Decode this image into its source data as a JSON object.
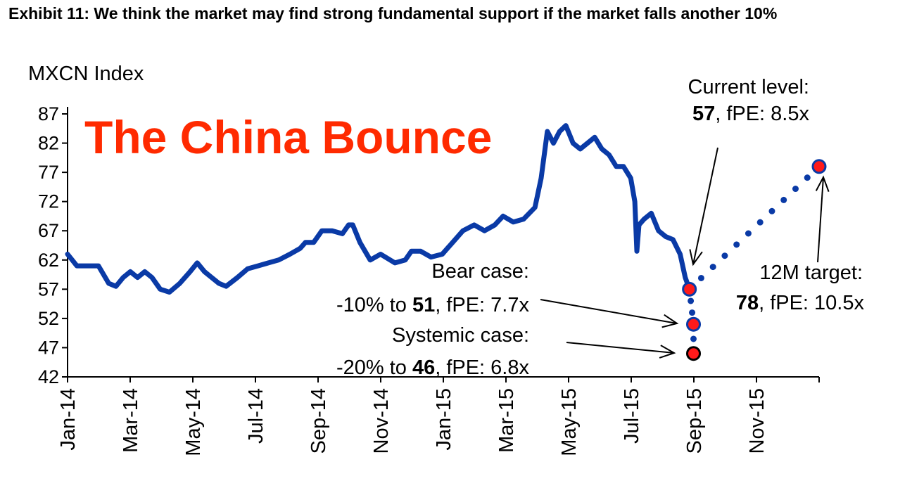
{
  "exhibit_title": "Exhibit 11: We think the market may find strong fundamental support if the market falls another 10%",
  "overlay_title": "The China Bounce",
  "colors": {
    "series": "#0a3aa6",
    "marker": "#ff1a1a",
    "overlay": "#ff2a00"
  },
  "chart_data": {
    "type": "line",
    "ylabel": "MXCN Index",
    "ylim": [
      42,
      87
    ],
    "yticks": [
      87,
      82,
      77,
      72,
      67,
      62,
      57,
      52,
      47,
      42
    ],
    "xticks": [
      "Jan-14",
      "Mar-14",
      "May-14",
      "Jul-14",
      "Sep-14",
      "Nov-14",
      "Jan-15",
      "Mar-15",
      "May-15",
      "Jul-15",
      "Sep-15",
      "Nov-15"
    ],
    "x_range": [
      "2014-01-01",
      "2016-01-01"
    ],
    "series": [
      {
        "values": [
          [
            "2014-01-01",
            63
          ],
          [
            "2014-01-10",
            61
          ],
          [
            "2014-01-20",
            61
          ],
          [
            "2014-01-31",
            61
          ],
          [
            "2014-02-10",
            58
          ],
          [
            "2014-02-17",
            57.5
          ],
          [
            "2014-02-24",
            59
          ],
          [
            "2014-03-03",
            60
          ],
          [
            "2014-03-10",
            59
          ],
          [
            "2014-03-17",
            60
          ],
          [
            "2014-03-24",
            59
          ],
          [
            "2014-04-01",
            57
          ],
          [
            "2014-04-10",
            56.5
          ],
          [
            "2014-04-20",
            58
          ],
          [
            "2014-04-30",
            60
          ],
          [
            "2014-05-07",
            61.5
          ],
          [
            "2014-05-14",
            60
          ],
          [
            "2014-05-21",
            59
          ],
          [
            "2014-05-28",
            58
          ],
          [
            "2014-06-04",
            57.5
          ],
          [
            "2014-06-15",
            59
          ],
          [
            "2014-06-25",
            60.5
          ],
          [
            "2014-07-05",
            61
          ],
          [
            "2014-07-15",
            61.5
          ],
          [
            "2014-07-25",
            62
          ],
          [
            "2014-08-05",
            63
          ],
          [
            "2014-08-15",
            64
          ],
          [
            "2014-08-20",
            65
          ],
          [
            "2014-08-28",
            65
          ],
          [
            "2014-09-05",
            67
          ],
          [
            "2014-09-15",
            67
          ],
          [
            "2014-09-25",
            66.5
          ],
          [
            "2014-10-01",
            68
          ],
          [
            "2014-10-05",
            68
          ],
          [
            "2014-10-12",
            65
          ],
          [
            "2014-10-22",
            62
          ],
          [
            "2014-11-01",
            63
          ],
          [
            "2014-11-15",
            61.5
          ],
          [
            "2014-11-25",
            62
          ],
          [
            "2014-12-01",
            63.5
          ],
          [
            "2014-12-10",
            63.5
          ],
          [
            "2014-12-20",
            62.5
          ],
          [
            "2014-12-31",
            63
          ],
          [
            "2015-01-10",
            65
          ],
          [
            "2015-01-20",
            67
          ],
          [
            "2015-01-31",
            68
          ],
          [
            "2015-02-10",
            67
          ],
          [
            "2015-02-20",
            68
          ],
          [
            "2015-02-28",
            69.5
          ],
          [
            "2015-03-10",
            68.5
          ],
          [
            "2015-03-20",
            69
          ],
          [
            "2015-03-31",
            71
          ],
          [
            "2015-04-06",
            76
          ],
          [
            "2015-04-12",
            84
          ],
          [
            "2015-04-18",
            82
          ],
          [
            "2015-04-24",
            84
          ],
          [
            "2015-04-30",
            85
          ],
          [
            "2015-05-07",
            82
          ],
          [
            "2015-05-14",
            81
          ],
          [
            "2015-05-21",
            82
          ],
          [
            "2015-05-28",
            83
          ],
          [
            "2015-06-04",
            81
          ],
          [
            "2015-06-11",
            80
          ],
          [
            "2015-06-18",
            78
          ],
          [
            "2015-06-25",
            78
          ],
          [
            "2015-07-02",
            76
          ],
          [
            "2015-07-06",
            72
          ],
          [
            "2015-07-08",
            63.5
          ],
          [
            "2015-07-10",
            68
          ],
          [
            "2015-07-15",
            69
          ],
          [
            "2015-07-22",
            70
          ],
          [
            "2015-07-29",
            67
          ],
          [
            "2015-08-05",
            66
          ],
          [
            "2015-08-12",
            65.5
          ],
          [
            "2015-08-19",
            63
          ],
          [
            "2015-08-24",
            59
          ],
          [
            "2015-08-28",
            57
          ]
        ]
      },
      {
        "values": [
          [
            "2015-08-28",
            57
          ],
          [
            "2016-01-01",
            78
          ]
        ]
      },
      {
        "values": [
          [
            "2015-08-28",
            57
          ],
          [
            "2015-09-01",
            51
          ],
          [
            "2015-09-01",
            46
          ]
        ]
      }
    ],
    "points": [
      {
        "label": "Current level",
        "date": "2015-08-28",
        "value": 57
      },
      {
        "label": "Bear case",
        "date": "2015-09-01",
        "value": 51
      },
      {
        "label": "Systemic case",
        "date": "2015-09-01",
        "value": 46
      },
      {
        "label": "12M target",
        "date": "2016-01-01",
        "value": 78
      }
    ],
    "annotations": {
      "current": {
        "line1": "Current level:",
        "bold": "57",
        "rest": ", fPE: 8.5x"
      },
      "bear": {
        "line1": "Bear case:",
        "prefix": "-10% to ",
        "bold": "51",
        "rest": ", fPE: 7.7x"
      },
      "systemic": {
        "line1": "Systemic case:",
        "prefix": "-20% to ",
        "bold": "46",
        "rest": ", fPE: 6.8x"
      },
      "target": {
        "line1": "12M target:",
        "bold": "78",
        "rest": ", fPE: 10.5x"
      }
    }
  }
}
